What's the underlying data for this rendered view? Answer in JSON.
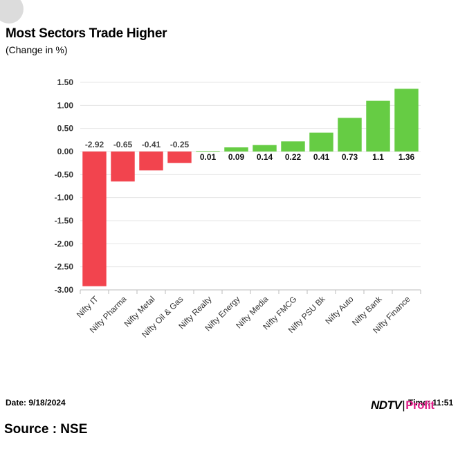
{
  "header": {
    "title": "Most Sectors Trade Higher",
    "subtitle": "(Change in %)"
  },
  "footer": {
    "date": "Date: 9/18/2024",
    "time": "Time: 11:51",
    "source": "Source : NSE",
    "logo_ndtv": "NDTV",
    "logo_separator": "|",
    "logo_profit": "Profit"
  },
  "colors": {
    "positive": "#66cc44",
    "negative": "#f2444e",
    "grid": "#e4e4e4"
  },
  "chart_data": {
    "type": "bar",
    "categories": [
      "Nifty IT",
      "Nifty Pharma",
      "Nifty Metal",
      "Nifty Oil & Gas",
      "Nifty Realty",
      "Nifty Energy",
      "Nifty Media",
      "Nifty FMCG",
      "Nifty PSU Bk",
      "Nifty Auto",
      "Nifty Bank",
      "Nifty Finance"
    ],
    "values": [
      -2.92,
      -0.65,
      -0.41,
      -0.25,
      0.01,
      0.09,
      0.14,
      0.22,
      0.41,
      0.73,
      1.1,
      1.36
    ],
    "value_labels": [
      "-2.92",
      "-0.65",
      "-0.41",
      "-0.25",
      "0.01",
      "0.09",
      "0.14",
      "0.22",
      "0.41",
      "0.73",
      "1.1",
      "1.36"
    ],
    "yticks": [
      "1.50",
      "1.00",
      "0.50",
      "0.00",
      "-0.50",
      "-1.00",
      "-1.50",
      "-2.00",
      "-2.50",
      "-3.00"
    ],
    "ytick_values": [
      1.5,
      1.0,
      0.5,
      0.0,
      -0.5,
      -1.0,
      -1.5,
      -2.0,
      -2.5,
      -3.0
    ],
    "ylim": [
      -3.0,
      1.5
    ],
    "grid": true,
    "legend": "none"
  }
}
